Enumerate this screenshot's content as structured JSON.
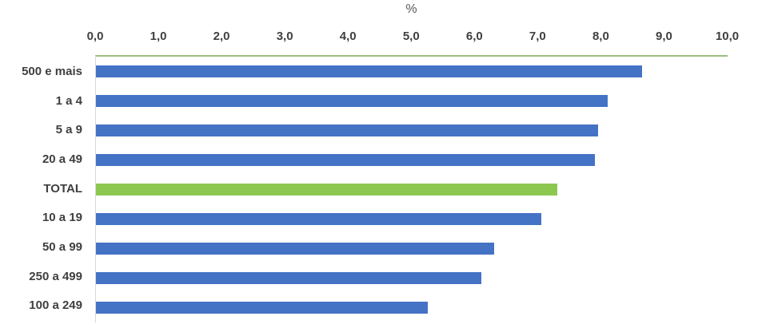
{
  "chart_data": {
    "type": "bar",
    "orientation": "horizontal",
    "title": "%",
    "categories": [
      "500 e mais",
      "1 a 4",
      "5 a 9",
      "20 a 49",
      "TOTAL",
      "10 a 19",
      "50 a 99",
      "250 a 499",
      "100 a 249"
    ],
    "values": [
      8.65,
      8.1,
      7.95,
      7.9,
      7.3,
      7.05,
      6.3,
      6.1,
      5.25
    ],
    "xlabel": "%",
    "ylabel": "",
    "xlim": [
      0,
      10
    ],
    "x_tick_labels": [
      "0,0",
      "1,0",
      "2,0",
      "3,0",
      "4,0",
      "5,0",
      "6,0",
      "7,0",
      "8,0",
      "9,0",
      "10,0"
    ],
    "grid": false,
    "legend": false,
    "highlight_category": "TOTAL",
    "colors": {
      "bar_default": "#4472C4",
      "bar_highlight": "#8CC850",
      "axis_line": "#9CBE7C",
      "tick_label": "#3F3F3F",
      "category_label": "#3F3F3F",
      "title": "#595959",
      "vertical_axis_line": "#D8D8D8",
      "background": "#FFFFFF"
    }
  }
}
